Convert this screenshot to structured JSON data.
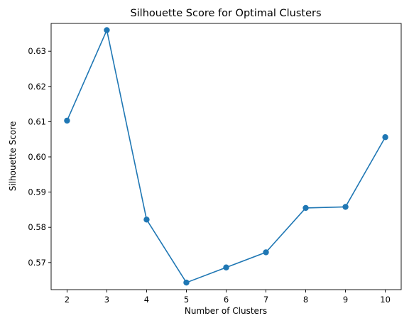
{
  "chart_data": {
    "type": "line",
    "title": "Silhouette Score for Optimal Clusters",
    "xlabel": "Number of Clusters",
    "ylabel": "Silhouette Score",
    "xlim": [
      1.6,
      10.4
    ],
    "ylim": [
      0.5623,
      0.6379
    ],
    "xticks": [
      2,
      3,
      4,
      5,
      6,
      7,
      8,
      9,
      10
    ],
    "yticks": [
      0.57,
      0.58,
      0.59,
      0.6,
      0.61,
      0.62,
      0.63
    ],
    "ytick_labels": [
      "0.57",
      "0.58",
      "0.59",
      "0.60",
      "0.61",
      "0.62",
      "0.63"
    ],
    "grid": false,
    "series": [
      {
        "name": "Silhouette Score",
        "color": "#1f77b4",
        "marker": "circle",
        "x": [
          2,
          3,
          4,
          5,
          6,
          7,
          8,
          9,
          10
        ],
        "values": [
          0.6103,
          0.636,
          0.5822,
          0.5643,
          0.5686,
          0.5729,
          0.5855,
          0.5858,
          0.6056
        ]
      }
    ]
  }
}
